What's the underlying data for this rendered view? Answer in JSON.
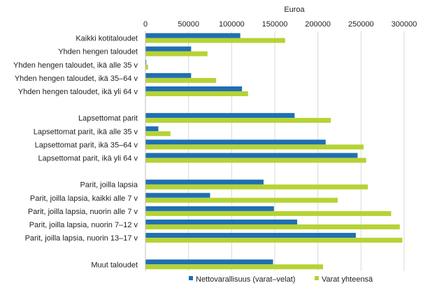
{
  "chart_data": {
    "type": "bar",
    "orientation": "horizontal",
    "title": "",
    "xlabel": "Euroa",
    "ylabel": "",
    "xlim": [
      0,
      300000
    ],
    "xticks": [
      "0",
      "50000",
      "100000",
      "150000",
      "200000",
      "250000",
      "300000"
    ],
    "xtick_values": [
      0,
      50000,
      100000,
      150000,
      200000,
      250000,
      300000
    ],
    "grid": true,
    "legend_position": "bottom",
    "categories": [
      "Kaikki kotitaloudet",
      "Yhden hengen taloudet",
      "Yhden hengen taloudet, ikä alle 35 v",
      "Yhden hengen taloudet, ikä 35–64 v",
      "Yhden hengen taloudet, ikä yli 64 v",
      "",
      "Lapsettomat parit",
      "Lapsettomat parit, ikä alle 35 v",
      "Lapsettomat parit, ikä 35–64 v",
      "Lapsettomat parit, ikä yli 64 v",
      "",
      "Parit, joilla lapsia",
      "Parit, joilla lapsia, kaikki alle 7 v",
      "Parit, joilla lapsia, nuorin alle 7 v",
      "Parit, joilla lapsia, nuorin 7–12 v",
      "Parit, joilla lapsia, nuorin 13–17 v",
      "",
      "Muut taloudet"
    ],
    "series": [
      {
        "name": "Nettovarallisuus (varat–velat)",
        "color": "#1f6fb2",
        "values": [
          110000,
          53000,
          1000,
          53000,
          112000,
          null,
          173000,
          15000,
          209000,
          246000,
          null,
          137000,
          75000,
          149000,
          176000,
          244000,
          null,
          148000
        ]
      },
      {
        "name": "Varat yhteensä",
        "color": "#b5d334",
        "values": [
          162000,
          72000,
          3000,
          82000,
          119000,
          null,
          215000,
          29000,
          253000,
          256000,
          null,
          258000,
          223000,
          285000,
          295000,
          298000,
          null,
          206000
        ]
      }
    ]
  }
}
